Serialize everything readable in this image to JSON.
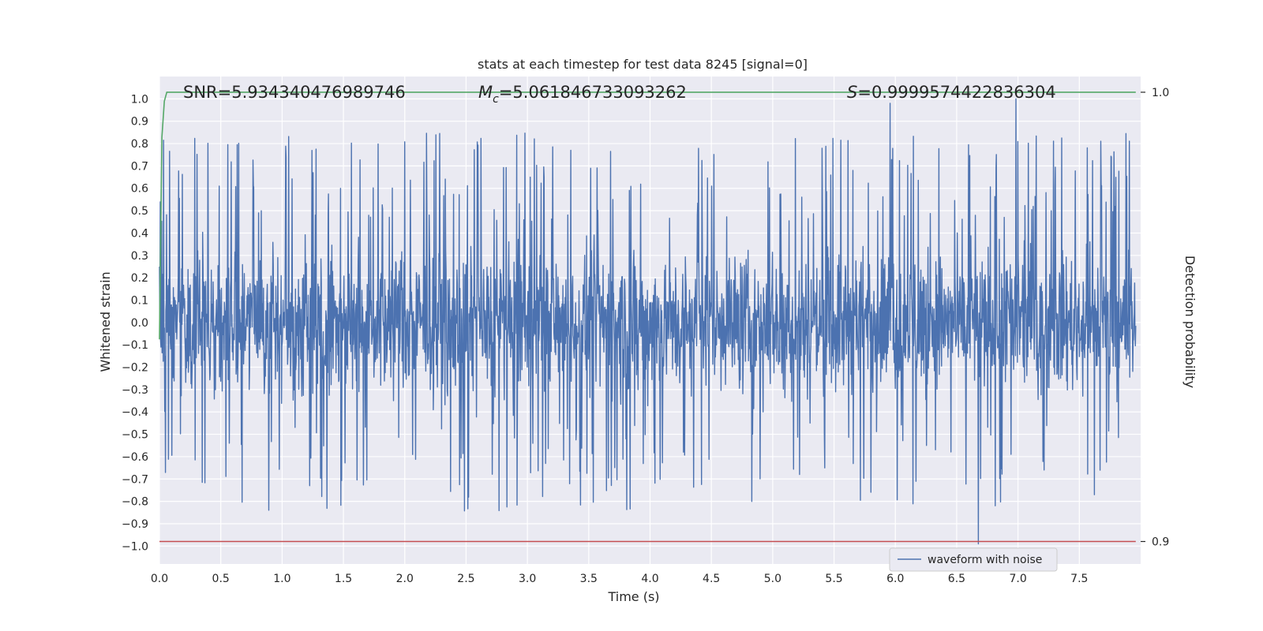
{
  "chart_data": {
    "type": "line",
    "title": "stats at each timestep for test data 8245 [signal=0]",
    "xlabel": "Time (s)",
    "ylabel": "Whitened strain",
    "y2label": "Detection probability",
    "xlim": [
      0.0,
      8.0
    ],
    "ylim": [
      -1.08,
      1.1
    ],
    "y2lim": [
      0.895,
      1.0035
    ],
    "x_ticks": [
      "0.0",
      "0.5",
      "1.0",
      "1.5",
      "2.0",
      "2.5",
      "3.0",
      "3.5",
      "4.0",
      "4.5",
      "5.0",
      "5.5",
      "6.0",
      "6.5",
      "7.0",
      "7.5"
    ],
    "y_ticks": [
      "1.0",
      "0.9",
      "0.8",
      "0.7",
      "0.6",
      "0.5",
      "0.4",
      "0.3",
      "0.2",
      "0.1",
      "0.0",
      "−0.1",
      "−0.2",
      "−0.3",
      "−0.4",
      "−0.5",
      "−0.6",
      "−0.7",
      "−0.8",
      "−0.9",
      "−1.0"
    ],
    "y2_ticks": [
      "1.0",
      "0.9"
    ],
    "grid": true,
    "legend_location": "bottom-right",
    "series": [
      {
        "name": "waveform with noise",
        "color": "#4c72b0",
        "description_type": "noise",
        "x_range": [
          0.0,
          7.96
        ],
        "y_typical_range": [
          -0.45,
          0.45
        ],
        "y_extremes": [
          -0.99,
          1.0
        ]
      },
      {
        "color": "#55a868",
        "axis": "y2",
        "x": [
          0.0,
          0.02,
          0.04,
          0.06,
          7.96
        ],
        "y": [
          0.945,
          0.99,
          0.998,
          1.0,
          1.0
        ]
      },
      {
        "color": "#c44e52",
        "axis": "y2",
        "x": [
          0.0,
          7.96
        ],
        "y": [
          0.9,
          0.9
        ]
      }
    ],
    "annotations": {
      "snr_text": "SNR=5.934340476989746",
      "mc_symbol": "M",
      "mc_subscript": "c",
      "mc_value": "=5.061846733093262",
      "s_symbol": "S",
      "s_value": "=0.9999574422836304"
    },
    "colors": {
      "plot_background": "#eaeaf2",
      "grid": "#ffffff",
      "text": "#262626"
    }
  }
}
